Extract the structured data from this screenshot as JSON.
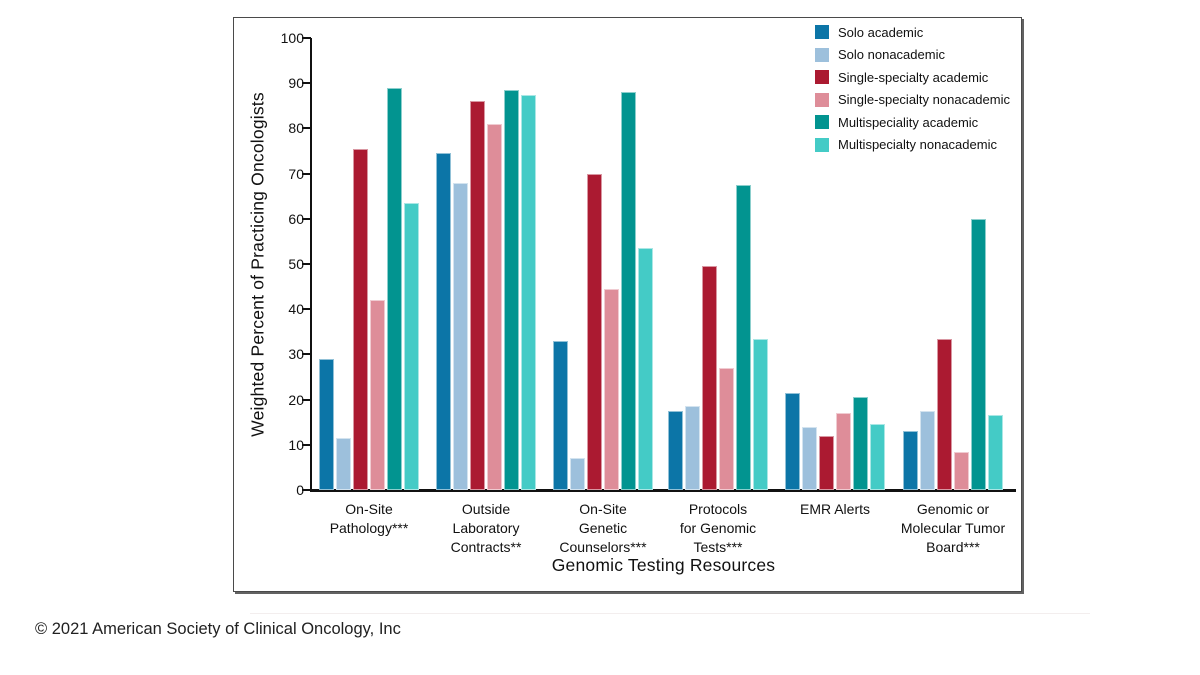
{
  "footer": {
    "copyright": "© 2021 American Society of Clinical Oncology, Inc"
  },
  "chart_data": {
    "type": "bar",
    "title": "",
    "xlabel": "Genomic Testing Resources",
    "ylabel": "Weighted Percent of Practicing Oncologists",
    "ylim": [
      0,
      100
    ],
    "yticks": [
      0,
      10,
      20,
      30,
      40,
      50,
      60,
      70,
      80,
      90,
      100
    ],
    "grid": false,
    "legend_position": "top-right",
    "categories": [
      "On-Site Pathology***",
      "Outside Laboratory Contracts**",
      "On-Site Genetic Counselors***",
      "Protocols for Genomic Tests***",
      "EMR Alerts",
      "Genomic or Molecular Tumor Board***"
    ],
    "category_label_lines": [
      [
        "On-Site",
        "Pathology***"
      ],
      [
        "Outside",
        "Laboratory",
        "Contracts**"
      ],
      [
        "On-Site",
        "Genetic",
        "Counselors***"
      ],
      [
        "Protocols",
        "for Genomic",
        "Tests***"
      ],
      [
        "EMR Alerts"
      ],
      [
        "Genomic or",
        "Molecular Tumor",
        "Board***"
      ]
    ],
    "series": [
      {
        "name": "Solo academic",
        "color": "#0c75a7",
        "values": [
          29,
          74.5,
          33,
          17.5,
          21.5,
          13
        ]
      },
      {
        "name": "Solo nonacademic",
        "color": "#9dc0dc",
        "values": [
          11.5,
          68,
          7,
          18.5,
          14,
          17.5
        ]
      },
      {
        "name": "Single-specialty academic",
        "color": "#ab1a31",
        "values": [
          75.5,
          86,
          70,
          49.5,
          12,
          33.5
        ]
      },
      {
        "name": "Single-specialty nonacademic",
        "color": "#de8d99",
        "values": [
          42,
          81,
          44.5,
          27,
          17,
          8.5
        ]
      },
      {
        "name": "Multispeciality academic",
        "color": "#029490",
        "values": [
          89,
          88.5,
          88,
          67.5,
          20.5,
          60
        ]
      },
      {
        "name": "Multispecialty nonacademic",
        "color": "#44cbc6",
        "values": [
          63.5,
          87.5,
          53.5,
          33.5,
          14.5,
          16.5
        ]
      }
    ]
  }
}
